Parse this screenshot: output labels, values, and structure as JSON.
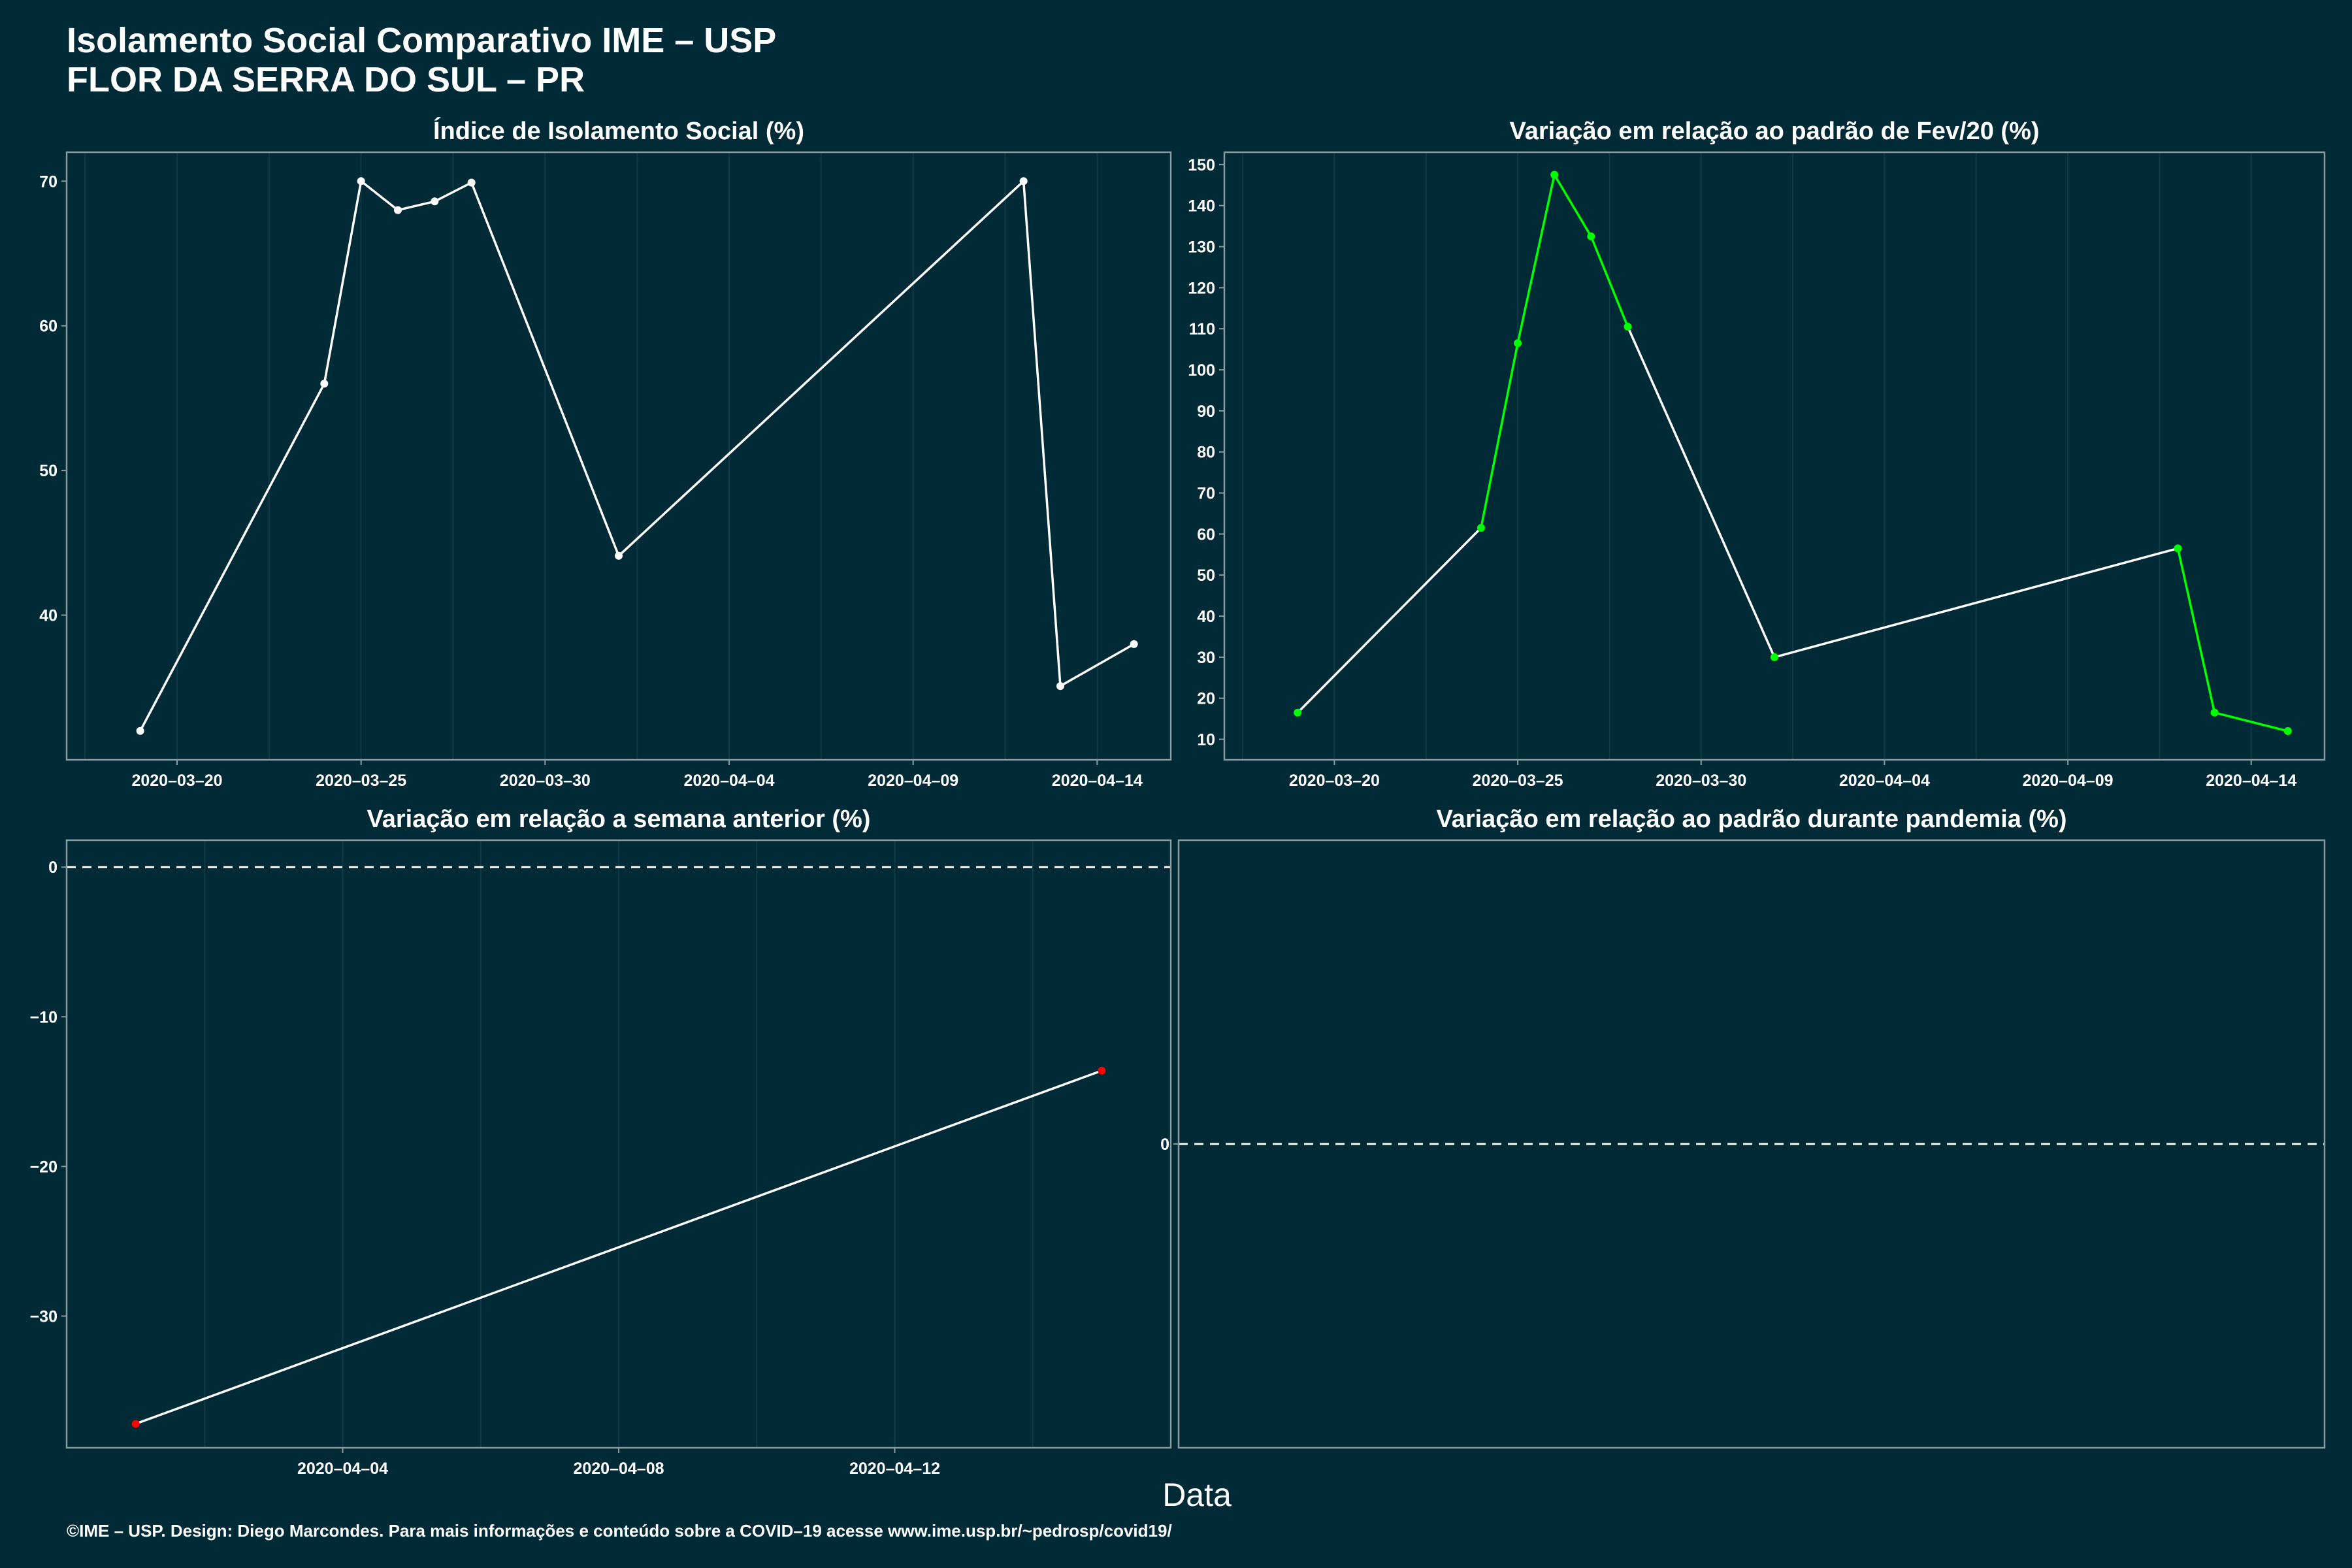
{
  "header": {
    "title_line1": "Isolamento Social Comparativo IME – USP",
    "title_line2": "FLOR DA SERRA DO SUL – PR"
  },
  "x_axis_title": "Data",
  "footer": {
    "caption": "©IME – USP. Design: Diego Marcondes. Para mais informações e conteúdo sobre a COVID–19 acesse www.ime.usp.br/~pedrosp/covid19/"
  },
  "colors": {
    "background": "#002b36",
    "line": "#ffffff",
    "increase": "#00ff00",
    "decrease": "#ff0000",
    "frame": "#8a9a9e",
    "grid": "#0d3a45"
  },
  "chart_data": [
    {
      "id": "p1",
      "type": "line",
      "title": "Índice de Isolamento Social (%)",
      "xlim": [
        "2020-03-17",
        "2020-04-16"
      ],
      "ylim": [
        30,
        72
      ],
      "x_ticks": [
        "2020-03-20",
        "2020-03-25",
        "2020-03-30",
        "2020-04-04",
        "2020-04-09",
        "2020-04-14"
      ],
      "x_tick_labels": [
        "2020–03–20",
        "2020–03–25",
        "2020–03–30",
        "2020–04–04",
        "2020–04–09",
        "2020–04–14"
      ],
      "y_ticks": [
        40,
        50,
        60,
        70
      ],
      "y_tick_labels": [
        "40",
        "50",
        "60",
        "70"
      ],
      "x": [
        "2020-03-19",
        "2020-03-24",
        "2020-03-25",
        "2020-03-26",
        "2020-03-27",
        "2020-03-28",
        "2020-04-01",
        "2020-04-12",
        "2020-04-13",
        "2020-04-15"
      ],
      "values": [
        32.0,
        56.0,
        70.0,
        68.0,
        68.6,
        69.9,
        44.1,
        70.0,
        35.1,
        38.0
      ],
      "point_colors": [
        "#ffffff",
        "#ffffff",
        "#ffffff",
        "#ffffff",
        "#ffffff",
        "#ffffff",
        "#ffffff",
        "#ffffff",
        "#ffffff",
        "#ffffff"
      ],
      "segment_colors": [
        "#ffffff",
        "#ffffff",
        "#ffffff",
        "#ffffff",
        "#ffffff",
        "#ffffff",
        "#ffffff",
        "#ffffff",
        "#ffffff"
      ],
      "zero_line": false
    },
    {
      "id": "p2",
      "type": "line",
      "title": "Variação em relação ao padrão de Fev/20 (%)",
      "xlim": [
        "2020-03-17",
        "2020-04-16"
      ],
      "ylim": [
        5,
        153
      ],
      "x_ticks": [
        "2020-03-20",
        "2020-03-25",
        "2020-03-30",
        "2020-04-04",
        "2020-04-09",
        "2020-04-14"
      ],
      "x_tick_labels": [
        "2020–03–20",
        "2020–03–25",
        "2020–03–30",
        "2020–04–04",
        "2020–04–09",
        "2020–04–14"
      ],
      "y_ticks": [
        10,
        20,
        30,
        40,
        50,
        60,
        70,
        80,
        90,
        100,
        110,
        120,
        130,
        140,
        150
      ],
      "y_tick_labels": [
        "10",
        "20",
        "30",
        "40",
        "50",
        "60",
        "70",
        "80",
        "90",
        "100",
        "110",
        "120",
        "130",
        "140",
        "150"
      ],
      "x": [
        "2020-03-19",
        "2020-03-24",
        "2020-03-25",
        "2020-03-26",
        "2020-03-27",
        "2020-03-28",
        "2020-04-01",
        "2020-04-12",
        "2020-04-13",
        "2020-04-15"
      ],
      "values": [
        16.5,
        61.5,
        106.5,
        147.5,
        132.5,
        110.5,
        30.0,
        56.5,
        16.5,
        12.0
      ],
      "point_colors": [
        "#00ff00",
        "#00ff00",
        "#00ff00",
        "#00ff00",
        "#00ff00",
        "#00ff00",
        "#00ff00",
        "#00ff00",
        "#00ff00",
        "#00ff00"
      ],
      "segment_colors": [
        "#ffffff",
        "#00ff00",
        "#00ff00",
        "#00ff00",
        "#00ff00",
        "#ffffff",
        "#ffffff",
        "#00ff00",
        "#00ff00"
      ],
      "zero_line": false
    },
    {
      "id": "p3",
      "type": "line",
      "title": "Variação em relação a semana anterior (%)",
      "xlim": [
        "2020-03-31",
        "2020-04-16"
      ],
      "ylim": [
        -38.8,
        1.8
      ],
      "x_ticks": [
        "2020-04-04",
        "2020-04-08",
        "2020-04-12"
      ],
      "x_tick_labels": [
        "2020–04–04",
        "2020–04–08",
        "2020–04–12"
      ],
      "y_ticks": [
        -30,
        -20,
        -10,
        0
      ],
      "y_tick_labels": [
        "−30",
        "−20",
        "−10",
        "0"
      ],
      "x": [
        "2020-04-01",
        "2020-04-15"
      ],
      "values": [
        -37.2,
        -13.6
      ],
      "point_colors": [
        "#ff0000",
        "#ff0000"
      ],
      "segment_colors": [
        "#ffffff"
      ],
      "zero_line": true
    },
    {
      "id": "p4",
      "type": "line",
      "title": "Variação em relação ao padrão durante pandemia (%)",
      "xlim": [],
      "ylim": [
        -1,
        1
      ],
      "x_ticks": [],
      "x_tick_labels": [],
      "y_ticks": [
        0
      ],
      "y_tick_labels": [
        "0"
      ],
      "x": [],
      "values": [],
      "point_colors": [],
      "segment_colors": [],
      "zero_line": true
    }
  ]
}
